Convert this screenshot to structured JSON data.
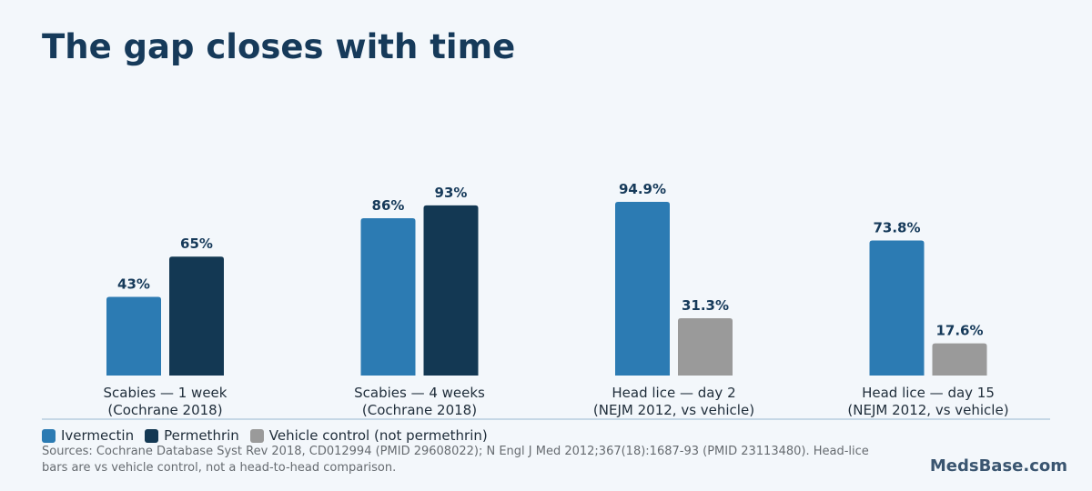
{
  "title": "The gap closes with time",
  "colors": {
    "ivermectin": "#2c7bb3",
    "permethrin": "#133853",
    "vehicle": "#9a9a9a",
    "label": "#163a5a",
    "axis": "#b8cde0"
  },
  "chart_data": {
    "type": "bar",
    "title": "The gap closes with time",
    "categories": [
      [
        "Scabies — 1 week",
        "(Cochrane 2018)"
      ],
      [
        "Scabies — 4 weeks",
        "(Cochrane 2018)"
      ],
      [
        "Head lice — day 2",
        "(NEJM 2012, vs vehicle)"
      ],
      [
        "Head lice — day 15",
        "(NEJM 2012, vs vehicle)"
      ]
    ],
    "groups": [
      {
        "bars": [
          {
            "series": "ivermectin",
            "value": 43,
            "label": "43%"
          },
          {
            "series": "permethrin",
            "value": 65,
            "label": "65%"
          }
        ]
      },
      {
        "bars": [
          {
            "series": "ivermectin",
            "value": 86,
            "label": "86%"
          },
          {
            "series": "permethrin",
            "value": 93,
            "label": "93%"
          }
        ]
      },
      {
        "bars": [
          {
            "series": "ivermectin",
            "value": 94.9,
            "label": "94.9%"
          },
          {
            "series": "vehicle",
            "value": 31.3,
            "label": "31.3%"
          }
        ]
      },
      {
        "bars": [
          {
            "series": "ivermectin",
            "value": 73.8,
            "label": "73.8%"
          },
          {
            "series": "vehicle",
            "value": 17.6,
            "label": "17.6%"
          }
        ]
      }
    ],
    "ylim": [
      0,
      100
    ],
    "grid": false,
    "legend_position": "bottom-left"
  },
  "legend": [
    {
      "series": "ivermectin",
      "label": "Ivermectin"
    },
    {
      "series": "permethrin",
      "label": "Permethrin"
    },
    {
      "series": "vehicle",
      "label": "Vehicle control (not permethrin)"
    }
  ],
  "sources": "Sources: Cochrane Database Syst Rev 2018, CD012994 (PMID 29608022); N Engl J Med 2012;367(18):1687-93 (PMID 23113480). Head-lice bars are vs vehicle control, not a head-to-head comparison.",
  "brand": "MedsBase.com"
}
